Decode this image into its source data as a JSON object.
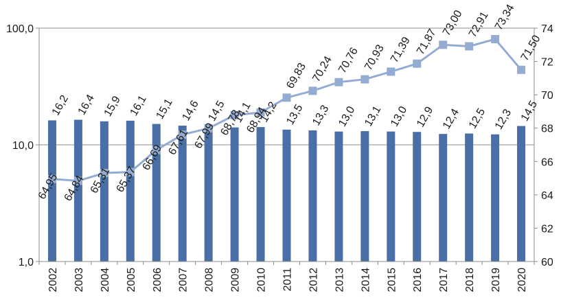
{
  "chart_data": {
    "type": "bar+line",
    "title": "",
    "categories": [
      "2002",
      "2003",
      "2004",
      "2005",
      "2006",
      "2007",
      "2008",
      "2009",
      "2010",
      "2011",
      "2012",
      "2013",
      "2014",
      "2015",
      "2016",
      "2017",
      "2018",
      "2019",
      "2020"
    ],
    "bars": {
      "axis": "left",
      "scale": "log",
      "ylim": [
        1,
        100
      ],
      "y_ticks": [
        "1,0",
        "10,0",
        "100,0"
      ],
      "y_tick_values": [
        1,
        10,
        100
      ],
      "values": [
        16.2,
        16.4,
        15.9,
        16.1,
        15.1,
        14.6,
        14.5,
        14.1,
        14.2,
        13.5,
        13.3,
        13.0,
        13.1,
        13.0,
        12.9,
        12.4,
        12.5,
        12.3,
        14.5
      ],
      "labels": [
        "16,2",
        "16,4",
        "15,9",
        "16,1",
        "15,1",
        "14,6",
        "14,5",
        "14,1",
        "14,2",
        "13,5",
        "13,3",
        "13,0",
        "13,1",
        "13,0",
        "12,9",
        "12,4",
        "12,5",
        "12,3",
        "14,5"
      ],
      "color": "#4a6fa5"
    },
    "line": {
      "axis": "right",
      "ylim": [
        60,
        74
      ],
      "y_ticks": [
        "60",
        "62",
        "64",
        "66",
        "68",
        "70",
        "72",
        "74"
      ],
      "y_tick_values": [
        60,
        62,
        64,
        66,
        68,
        70,
        72,
        74
      ],
      "values": [
        64.95,
        64.84,
        65.31,
        65.37,
        66.69,
        67.61,
        67.99,
        68.78,
        68.94,
        69.83,
        70.24,
        70.76,
        70.93,
        71.39,
        71.87,
        73.0,
        72.91,
        73.34,
        71.5
      ],
      "labels": [
        "64,95",
        "64,84",
        "65,31",
        "65,37",
        "66,69",
        "67,61",
        "67,99",
        "68,78",
        "68,94",
        "69,83",
        "70,24",
        "70,76",
        "70,93",
        "71,39",
        "71,87",
        "73,00",
        "72,91",
        "73,34",
        "71,50"
      ],
      "color": "#94acd2",
      "marker": "square"
    },
    "grid": {
      "horizontal": true,
      "gridline_values_left": [
        10,
        100
      ]
    },
    "legend": "none"
  }
}
